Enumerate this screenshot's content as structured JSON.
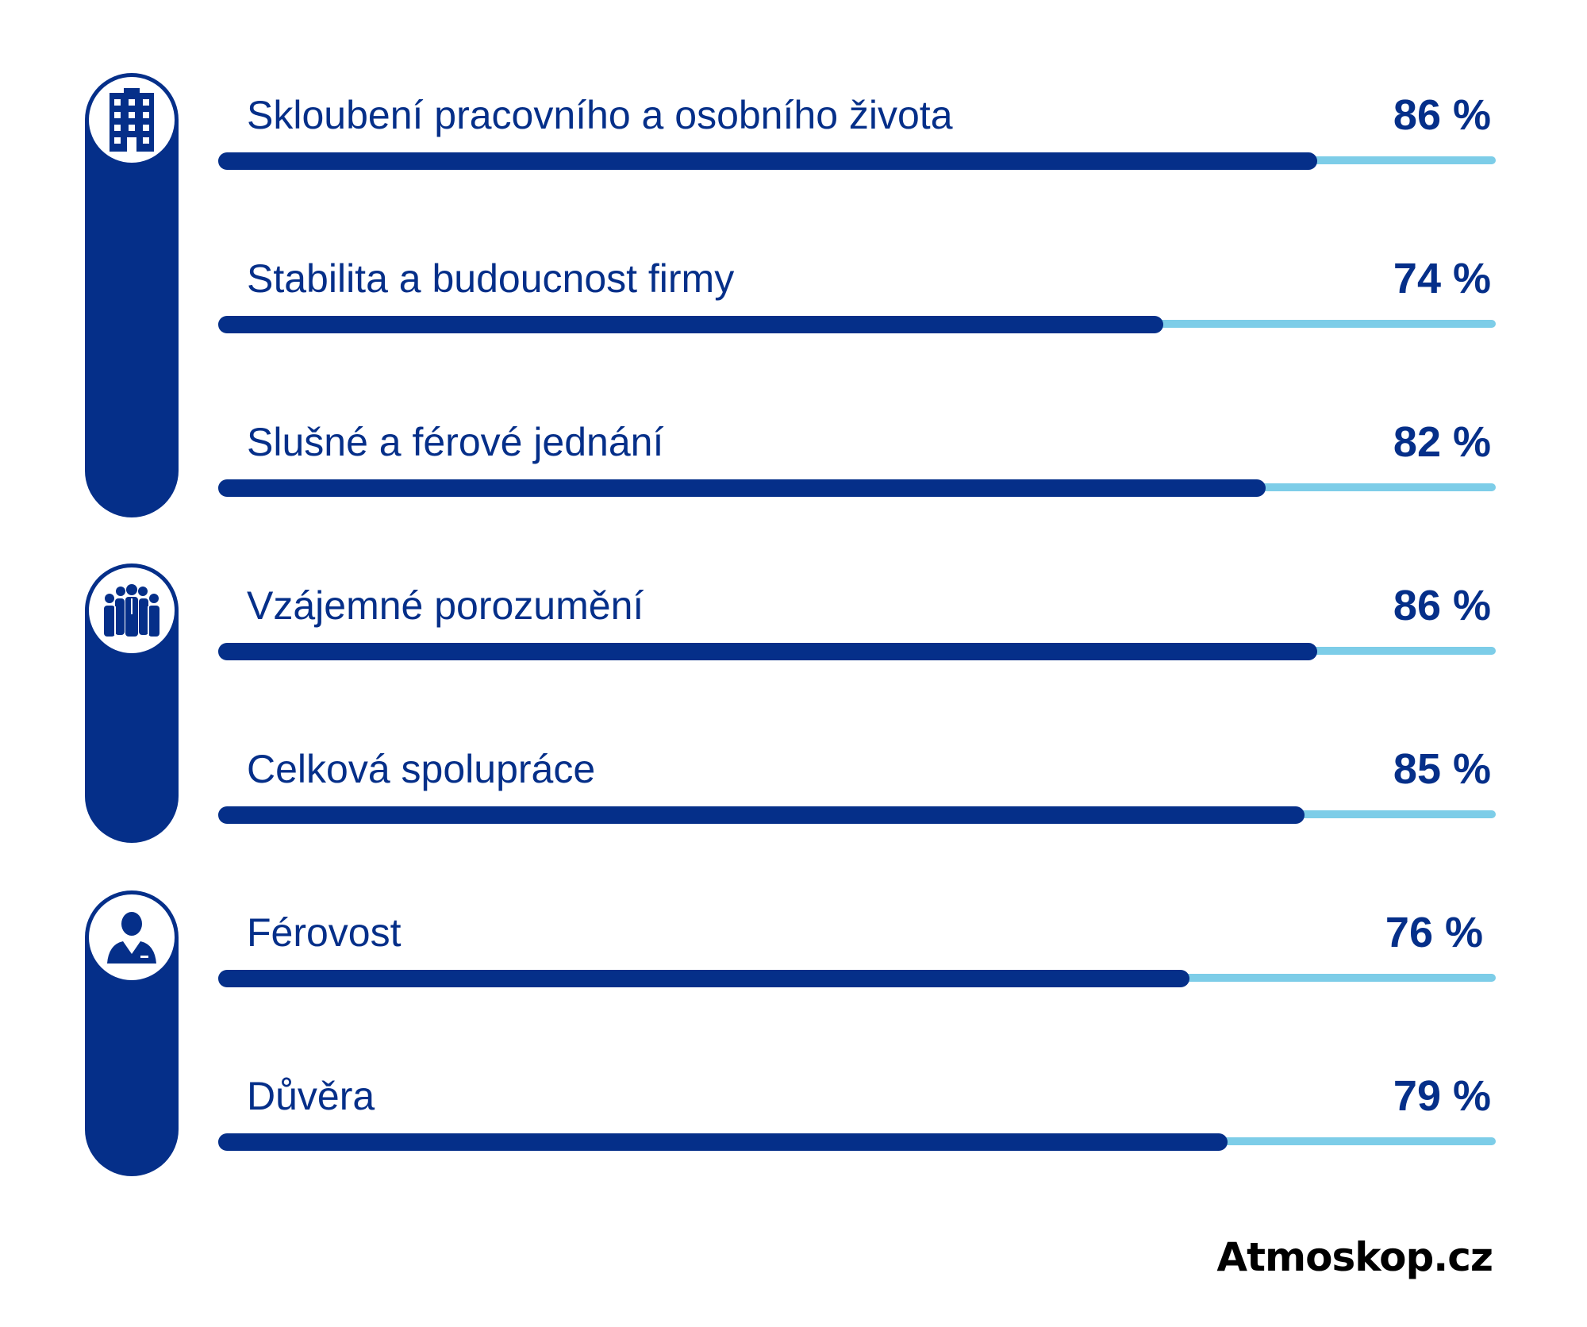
{
  "chart_data": {
    "type": "bar",
    "orientation": "horizontal",
    "categories": [
      "Skloubení pracovního a osobního života",
      "Stabilita a budoucnost firmy",
      "Slušné a férové jednání",
      "Vzájemné porozumění",
      "Celková spolupráce",
      "Férovost",
      "Důvěra"
    ],
    "values": [
      86,
      74,
      82,
      86,
      85,
      76,
      79
    ],
    "value_labels": [
      "86 %",
      "74 %",
      "82 %",
      "86 %",
      "85 %",
      "76 %",
      "79 %"
    ],
    "xlim": [
      0,
      100
    ],
    "groups": [
      {
        "icon": "building-icon",
        "rows": [
          0,
          1,
          2
        ]
      },
      {
        "icon": "team-icon",
        "rows": [
          3,
          4
        ]
      },
      {
        "icon": "manager-icon",
        "rows": [
          5,
          6
        ]
      }
    ],
    "grid": false,
    "legend": "none",
    "colors": {
      "bar": "#052f89",
      "track": "#7dcde8"
    }
  },
  "brand": "Atmoskop.cz"
}
